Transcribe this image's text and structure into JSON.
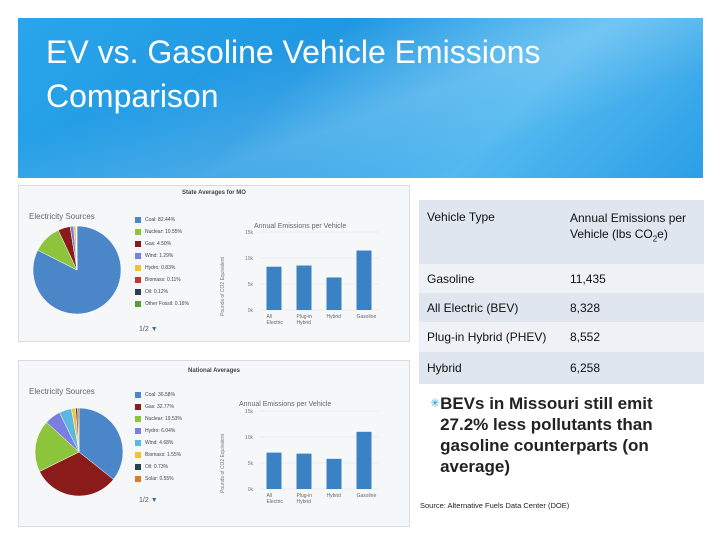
{
  "slide": {
    "title": "EV vs. Gasoline Vehicle Emissions Comparison",
    "accent": "#1f97e2",
    "bullet_icon": "asterisk-icon",
    "bullet_text": "BEVs in Missouri still emit 27.2% less pollutants than gasoline counterparts (on average)",
    "source": "Source: Alternative Fuels Data Center (DOE)"
  },
  "table": {
    "header": {
      "type": "Vehicle Type",
      "annual_pre": "Annual Emissions per Vehicle (lbs CO",
      "annual_sub": "2",
      "annual_post": "e)"
    },
    "rows": [
      {
        "type": "Gasoline",
        "value": "11,435"
      },
      {
        "type": "All Electric (BEV)",
        "value": "8,328"
      },
      {
        "type": "Plug-in Hybrid (PHEV)",
        "value": "8,552"
      },
      {
        "type": "Hybrid",
        "value": "6,258"
      }
    ]
  },
  "panels": [
    {
      "title": "State Averages for MO",
      "source_label": "Electricity Sources",
      "legend": [
        {
          "label": "Coal: 82.44%",
          "color": "#4a86c8"
        },
        {
          "label": "Nuclear: 10.55%",
          "color": "#8cc43c"
        },
        {
          "label": "Gas: 4.50%",
          "color": "#8b1a1a"
        },
        {
          "label": "Wind: 1.29%",
          "color": "#7a7ee0"
        },
        {
          "label": "Hydro: 0.83%",
          "color": "#f2c230"
        },
        {
          "label": "Biomass: 0.11%",
          "color": "#c0392b"
        },
        {
          "label": "Oil: 0.12%",
          "color": "#2c3e50"
        },
        {
          "label": "Other Fossil: 0.16%",
          "color": "#5a9e3a"
        }
      ],
      "pie": [
        82.44,
        10.55,
        4.5,
        1.29,
        0.83,
        0.11,
        0.12,
        0.16
      ],
      "pager": "1/2",
      "chart_title": "Annual Emissions per Vehicle",
      "ylabel": "Pounds of CO2 Equivalent",
      "yticks": [
        "15k",
        "10k",
        "5k",
        "0k"
      ],
      "categories": [
        "All Electric",
        "Plug-in Hybrid",
        "Hybrid",
        "Gasoline"
      ],
      "values": [
        8328,
        8552,
        6258,
        11435
      ],
      "ymax": 15000
    },
    {
      "title": "National Averages",
      "source_label": "Electricity Sources",
      "legend": [
        {
          "label": "Coal: 36.58%",
          "color": "#4a86c8"
        },
        {
          "label": "Gas: 32.77%",
          "color": "#8b1a1a"
        },
        {
          "label": "Nuclear: 19.53%",
          "color": "#8cc43c"
        },
        {
          "label": "Hydro: 6.04%",
          "color": "#7a7ee0"
        },
        {
          "label": "Wind: 4.68%",
          "color": "#5bb8e0"
        },
        {
          "label": "Biomass: 1.55%",
          "color": "#f2c230"
        },
        {
          "label": "Oil: 0.73%",
          "color": "#2c3e50"
        },
        {
          "label": "Solar: 0.55%",
          "color": "#e07a20"
        }
      ],
      "pie": [
        36.58,
        32.77,
        19.53,
        6.04,
        4.68,
        1.55,
        0.73,
        0.55
      ],
      "pager": "1/2",
      "chart_title": "Annual Emissions per Vehicle",
      "ylabel": "Pounds of CO2 Equivalent",
      "yticks": [
        "15k",
        "10k",
        "5k",
        "0k"
      ],
      "categories": [
        "All Electric",
        "Plug-in Hybrid",
        "Hybrid",
        "Gasoline"
      ],
      "values": [
        7000,
        6800,
        5800,
        11000
      ],
      "ymax": 15000
    }
  ]
}
